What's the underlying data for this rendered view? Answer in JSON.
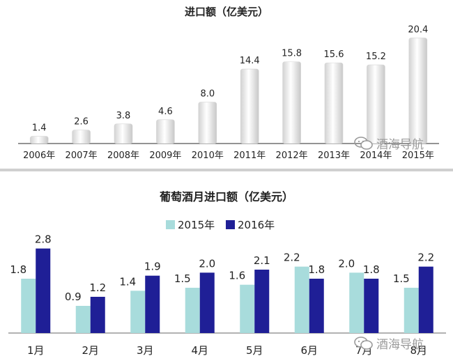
{
  "chart_data": [
    {
      "type": "bar",
      "title": "进口额（亿美元）",
      "categories": [
        "2006年",
        "2007年",
        "2008年",
        "2009年",
        "2010年",
        "2011年",
        "2012年",
        "2013年",
        "2014年",
        "2015年"
      ],
      "values": [
        1.4,
        2.6,
        3.8,
        4.6,
        8.0,
        14.4,
        15.8,
        15.6,
        15.2,
        20.4
      ],
      "value_labels": [
        "1.4",
        "2.6",
        "3.8",
        "4.6",
        "8.0",
        "14.4",
        "15.8",
        "15.6",
        "15.2",
        "20.4"
      ],
      "ylim": [
        0,
        21
      ],
      "grid": false,
      "colors": {
        "bar_light": "#ffffff",
        "bar_dark": "#cfcfcf",
        "axis": "#555555"
      }
    },
    {
      "type": "bar",
      "title": "葡萄酒月进口额（亿美元）",
      "categories": [
        "1月",
        "2月",
        "3月",
        "4月",
        "5月",
        "6月",
        "7月",
        "8月"
      ],
      "series": [
        {
          "name": "2015年",
          "values": [
            1.8,
            0.9,
            1.4,
            1.5,
            1.6,
            2.2,
            2.0,
            1.5
          ],
          "labels": [
            "1.8",
            "0.9",
            "1.4",
            "1.5",
            "1.6",
            "2.2",
            "2.0",
            "1.5"
          ],
          "color": "#a8dcdc"
        },
        {
          "name": "2016年",
          "values": [
            2.8,
            1.2,
            1.9,
            2.0,
            2.1,
            1.8,
            1.8,
            2.2
          ],
          "labels": [
            "2.8",
            "1.2",
            "1.9",
            "2.0",
            "2.1",
            "1.8",
            "1.8",
            "2.2"
          ],
          "color": "#1f1f96"
        }
      ],
      "ylim": [
        0,
        3.0
      ],
      "legend": "top-center",
      "grid": false
    }
  ],
  "watermark": {
    "text": "酒海导航",
    "icon": "wechat-icon"
  }
}
